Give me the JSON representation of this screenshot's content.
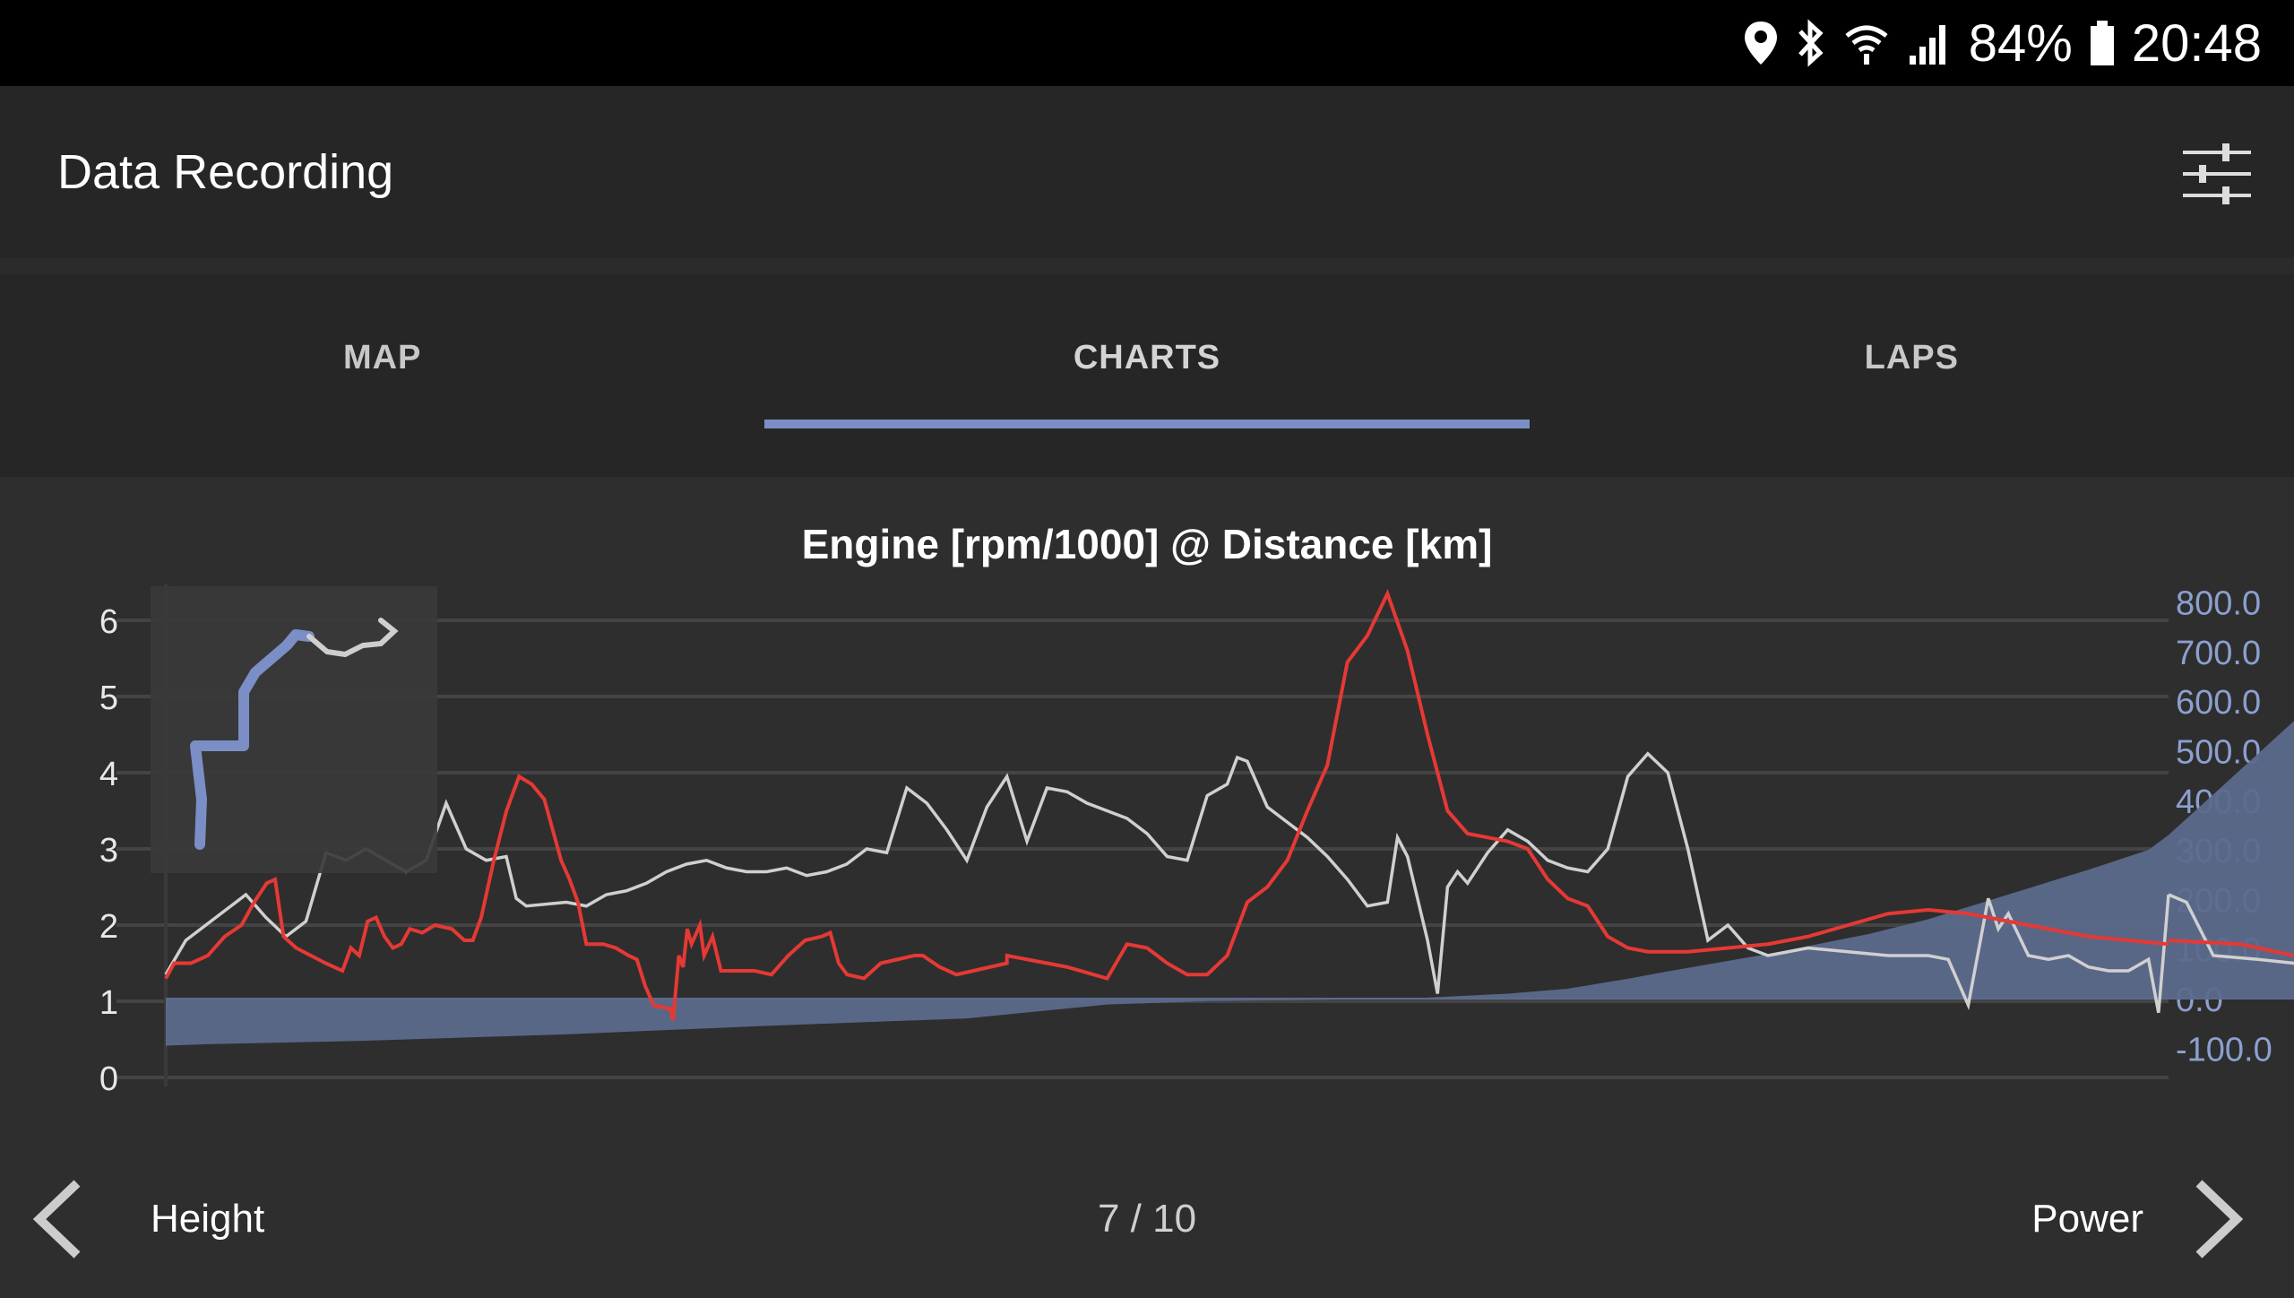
{
  "status_bar": {
    "icons": [
      "location-icon",
      "bluetooth-icon",
      "wifi-icon",
      "cell-signal-icon",
      "battery-icon"
    ],
    "battery": "84%",
    "time": "20:48"
  },
  "app_bar": {
    "title": "Data Recording",
    "action_icon": "filter-sliders-icon"
  },
  "tabs": [
    {
      "label": "MAP",
      "active": false
    },
    {
      "label": "CHARTS",
      "active": true
    },
    {
      "label": "LAPS",
      "active": false
    }
  ],
  "colors": {
    "accent": "#7b8fc6",
    "engine_line": "#e53935",
    "speed_line": "#d0d0d0",
    "height_area": "#5c6a8c",
    "right_axis_text": "#8c9fcf"
  },
  "chart_data": {
    "type": "line",
    "title": "Engine [rpm/1000] @ Distance [km]",
    "left_axis": {
      "ticks": [
        "0",
        "1",
        "2",
        "3",
        "4",
        "5",
        "6"
      ],
      "range": [
        0,
        6.5
      ]
    },
    "right_axis": {
      "ticks": [
        "800.0",
        "700.0",
        "600.0",
        "500.0",
        "400.0",
        "300.0",
        "200.0",
        "100.0",
        "0.0",
        "-100.0"
      ],
      "range": [
        -100,
        800
      ]
    },
    "x_range": [
      0,
      100
    ],
    "grid": true,
    "series": [
      {
        "key": "engine",
        "axis": "left",
        "style": "line",
        "points": [
          [
            0,
            1.3
          ],
          [
            1,
            1.5
          ],
          [
            3,
            1.5
          ],
          [
            5,
            1.6
          ],
          [
            7,
            1.85
          ],
          [
            9,
            2.0
          ],
          [
            10.5,
            2.3
          ],
          [
            12,
            2.55
          ],
          [
            13,
            2.6
          ],
          [
            14,
            1.85
          ],
          [
            15.5,
            1.7
          ],
          [
            19,
            1.5
          ],
          [
            21,
            1.4
          ],
          [
            22,
            1.7
          ],
          [
            23,
            1.6
          ],
          [
            24,
            2.05
          ],
          [
            25,
            2.1
          ],
          [
            26,
            1.85
          ],
          [
            27,
            1.7
          ],
          [
            28,
            1.75
          ],
          [
            29,
            1.95
          ],
          [
            30.5,
            1.9
          ],
          [
            32,
            2.0
          ],
          [
            34,
            1.95
          ],
          [
            35.5,
            1.8
          ],
          [
            36.5,
            1.8
          ],
          [
            37.5,
            2.1
          ],
          [
            39,
            2.85
          ],
          [
            40.5,
            3.5
          ],
          [
            42,
            3.95
          ],
          [
            43.5,
            3.85
          ],
          [
            45,
            3.65
          ],
          [
            46,
            3.25
          ],
          [
            47,
            2.85
          ],
          [
            48,
            2.6
          ],
          [
            49,
            2.3
          ],
          [
            50,
            1.75
          ],
          [
            52,
            1.75
          ],
          [
            53.5,
            1.7
          ],
          [
            55,
            1.6
          ],
          [
            56,
            1.55
          ],
          [
            57,
            1.2
          ],
          [
            58,
            0.95
          ],
          [
            60,
            0.9
          ],
          [
            60.3,
            0.75
          ],
          [
            61,
            1.6
          ],
          [
            61.5,
            1.45
          ],
          [
            62,
            1.95
          ],
          [
            62.5,
            1.75
          ],
          [
            63.5,
            2.0
          ],
          [
            64,
            1.6
          ],
          [
            65,
            1.85
          ],
          [
            66,
            1.4
          ],
          [
            68,
            1.4
          ],
          [
            70,
            1.4
          ],
          [
            72,
            1.35
          ],
          [
            74,
            1.6
          ],
          [
            76,
            1.8
          ],
          [
            78,
            1.85
          ],
          [
            79,
            1.9
          ],
          [
            80,
            1.5
          ],
          [
            81,
            1.35
          ],
          [
            83,
            1.3
          ],
          [
            85,
            1.5
          ],
          [
            87,
            1.55
          ],
          [
            89,
            1.6
          ],
          [
            90,
            1.6
          ],
          [
            92,
            1.45
          ],
          [
            94,
            1.35
          ],
          [
            96,
            1.4
          ],
          [
            98,
            1.45
          ],
          [
            100,
            1.5
          ]
        ],
        "note_x_scale": "segment_1"
      },
      {
        "key": "engine_b",
        "axis": "left",
        "style": "line",
        "points": [
          [
            0,
            1.6
          ],
          [
            3,
            1.45
          ],
          [
            5,
            1.3
          ],
          [
            6,
            1.75
          ],
          [
            7,
            1.7
          ],
          [
            8,
            1.5
          ],
          [
            9,
            1.35
          ],
          [
            10,
            1.35
          ],
          [
            11,
            1.6
          ],
          [
            12,
            2.3
          ],
          [
            13,
            2.5
          ],
          [
            14,
            2.85
          ],
          [
            15,
            3.5
          ],
          [
            16,
            4.1
          ],
          [
            17,
            5.45
          ],
          [
            18,
            5.8
          ],
          [
            19,
            6.35
          ],
          [
            20,
            5.6
          ],
          [
            21,
            4.5
          ],
          [
            22,
            3.5
          ],
          [
            23,
            3.2
          ],
          [
            25,
            3.1
          ],
          [
            26,
            3.0
          ],
          [
            27,
            2.6
          ],
          [
            28,
            2.35
          ],
          [
            29,
            2.25
          ],
          [
            30,
            1.85
          ],
          [
            31,
            1.7
          ],
          [
            32,
            1.65
          ],
          [
            34,
            1.65
          ],
          [
            36,
            1.7
          ],
          [
            38,
            1.75
          ],
          [
            40,
            1.85
          ],
          [
            42,
            2.0
          ],
          [
            44,
            2.15
          ],
          [
            46,
            2.2
          ],
          [
            48,
            2.15
          ],
          [
            50,
            2.05
          ],
          [
            52,
            1.95
          ],
          [
            54,
            1.85
          ],
          [
            56,
            1.8
          ],
          [
            58,
            1.75
          ]
        ]
      }
    ],
    "labels": {
      "prev": "Height",
      "next": "Power",
      "page": "7 / 10"
    }
  },
  "footer": {
    "prev_label": "Height",
    "page": "7 / 10",
    "next_label": "Power"
  }
}
